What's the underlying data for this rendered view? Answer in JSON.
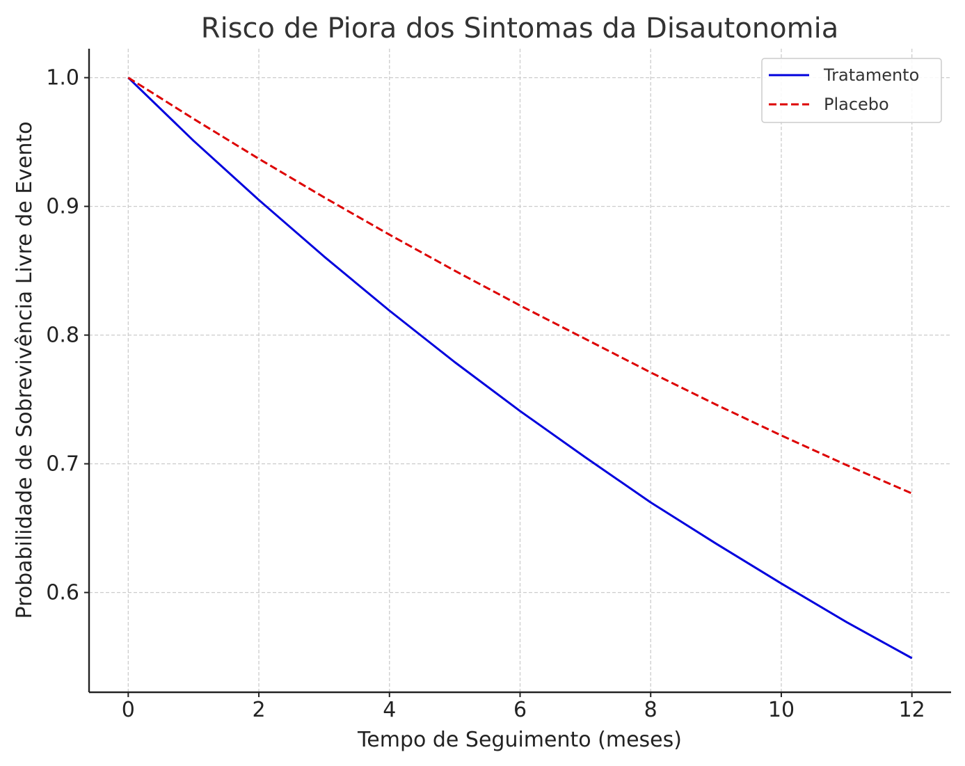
{
  "chart_data": {
    "type": "line",
    "title": "Risco de Piora dos Sintomas da Disautonomia",
    "xlabel": "Tempo de Seguimento (meses)",
    "ylabel": "Probabilidade de Sobrevivência Livre de Evento",
    "xlim": [
      -0.6,
      12.6
    ],
    "ylim": [
      0.5225,
      1.0225
    ],
    "xticks": [
      0,
      2,
      4,
      6,
      8,
      10,
      12
    ],
    "xtick_labels": [
      "0",
      "2",
      "4",
      "6",
      "8",
      "10",
      "12"
    ],
    "yticks": [
      0.6,
      0.7,
      0.8,
      0.9,
      1.0
    ],
    "ytick_labels": [
      "0.6",
      "0.7",
      "0.8",
      "0.9",
      "1.0"
    ],
    "grid": true,
    "legend_position": "top-right",
    "x": [
      0,
      1,
      2,
      3,
      4,
      5,
      6,
      7,
      8,
      9,
      10,
      11,
      12
    ],
    "series": [
      {
        "name": "Tratamento",
        "color": "#0000dd",
        "style": "solid",
        "values": [
          1.0,
          0.951,
          0.905,
          0.861,
          0.819,
          0.779,
          0.741,
          0.705,
          0.67,
          0.638,
          0.607,
          0.577,
          0.549
        ]
      },
      {
        "name": "Placebo",
        "color": "#dd0000",
        "style": "dashed",
        "values": [
          1.0,
          0.968,
          0.937,
          0.907,
          0.878,
          0.85,
          0.823,
          0.797,
          0.771,
          0.746,
          0.722,
          0.699,
          0.677
        ]
      }
    ]
  }
}
